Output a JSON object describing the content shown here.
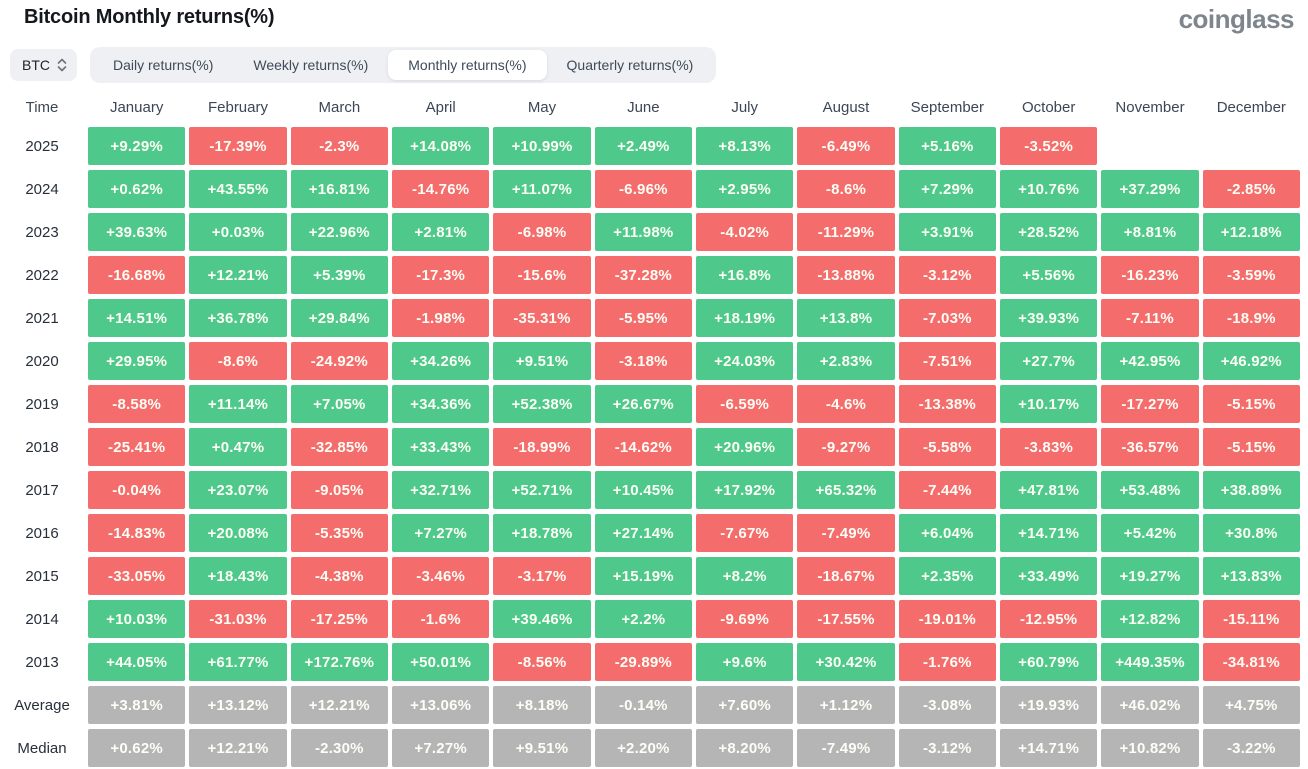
{
  "page": {
    "title": "Bitcoin Monthly returns(%)",
    "logo": "coinglass"
  },
  "controls": {
    "symbol": "BTC",
    "tabs": [
      {
        "label": "Daily returns(%)",
        "selected": false
      },
      {
        "label": "Weekly returns(%)",
        "selected": false
      },
      {
        "label": "Monthly returns(%)",
        "selected": true
      },
      {
        "label": "Quarterly returns(%)",
        "selected": false
      }
    ]
  },
  "colors": {
    "positive": "#4ec98b",
    "negative": "#f56c6c",
    "summary": "#b5b5b5",
    "cell_text": "#fdfef6",
    "chip_bg": "#eef0f3",
    "title_text": "#14171c",
    "logo_text": "#7e858d"
  },
  "table": {
    "time_header": "Time",
    "months": [
      "January",
      "February",
      "March",
      "April",
      "May",
      "June",
      "July",
      "August",
      "September",
      "October",
      "November",
      "December"
    ],
    "rows": [
      {
        "label": "2025",
        "type": "year",
        "values": [
          "+9.29%",
          "-17.39%",
          "-2.3%",
          "+14.08%",
          "+10.99%",
          "+2.49%",
          "+8.13%",
          "-6.49%",
          "+5.16%",
          "-3.52%",
          "",
          ""
        ]
      },
      {
        "label": "2024",
        "type": "year",
        "values": [
          "+0.62%",
          "+43.55%",
          "+16.81%",
          "-14.76%",
          "+11.07%",
          "-6.96%",
          "+2.95%",
          "-8.6%",
          "+7.29%",
          "+10.76%",
          "+37.29%",
          "-2.85%"
        ]
      },
      {
        "label": "2023",
        "type": "year",
        "values": [
          "+39.63%",
          "+0.03%",
          "+22.96%",
          "+2.81%",
          "-6.98%",
          "+11.98%",
          "-4.02%",
          "-11.29%",
          "+3.91%",
          "+28.52%",
          "+8.81%",
          "+12.18%"
        ]
      },
      {
        "label": "2022",
        "type": "year",
        "values": [
          "-16.68%",
          "+12.21%",
          "+5.39%",
          "-17.3%",
          "-15.6%",
          "-37.28%",
          "+16.8%",
          "-13.88%",
          "-3.12%",
          "+5.56%",
          "-16.23%",
          "-3.59%"
        ]
      },
      {
        "label": "2021",
        "type": "year",
        "values": [
          "+14.51%",
          "+36.78%",
          "+29.84%",
          "-1.98%",
          "-35.31%",
          "-5.95%",
          "+18.19%",
          "+13.8%",
          "-7.03%",
          "+39.93%",
          "-7.11%",
          "-18.9%"
        ]
      },
      {
        "label": "2020",
        "type": "year",
        "values": [
          "+29.95%",
          "-8.6%",
          "-24.92%",
          "+34.26%",
          "+9.51%",
          "-3.18%",
          "+24.03%",
          "+2.83%",
          "-7.51%",
          "+27.7%",
          "+42.95%",
          "+46.92%"
        ]
      },
      {
        "label": "2019",
        "type": "year",
        "values": [
          "-8.58%",
          "+11.14%",
          "+7.05%",
          "+34.36%",
          "+52.38%",
          "+26.67%",
          "-6.59%",
          "-4.6%",
          "-13.38%",
          "+10.17%",
          "-17.27%",
          "-5.15%"
        ]
      },
      {
        "label": "2018",
        "type": "year",
        "values": [
          "-25.41%",
          "+0.47%",
          "-32.85%",
          "+33.43%",
          "-18.99%",
          "-14.62%",
          "+20.96%",
          "-9.27%",
          "-5.58%",
          "-3.83%",
          "-36.57%",
          "-5.15%"
        ]
      },
      {
        "label": "2017",
        "type": "year",
        "values": [
          "-0.04%",
          "+23.07%",
          "-9.05%",
          "+32.71%",
          "+52.71%",
          "+10.45%",
          "+17.92%",
          "+65.32%",
          "-7.44%",
          "+47.81%",
          "+53.48%",
          "+38.89%"
        ]
      },
      {
        "label": "2016",
        "type": "year",
        "values": [
          "-14.83%",
          "+20.08%",
          "-5.35%",
          "+7.27%",
          "+18.78%",
          "+27.14%",
          "-7.67%",
          "-7.49%",
          "+6.04%",
          "+14.71%",
          "+5.42%",
          "+30.8%"
        ]
      },
      {
        "label": "2015",
        "type": "year",
        "values": [
          "-33.05%",
          "+18.43%",
          "-4.38%",
          "-3.46%",
          "-3.17%",
          "+15.19%",
          "+8.2%",
          "-18.67%",
          "+2.35%",
          "+33.49%",
          "+19.27%",
          "+13.83%"
        ]
      },
      {
        "label": "2014",
        "type": "year",
        "values": [
          "+10.03%",
          "-31.03%",
          "-17.25%",
          "-1.6%",
          "+39.46%",
          "+2.2%",
          "-9.69%",
          "-17.55%",
          "-19.01%",
          "-12.95%",
          "+12.82%",
          "-15.11%"
        ]
      },
      {
        "label": "2013",
        "type": "year",
        "values": [
          "+44.05%",
          "+61.77%",
          "+172.76%",
          "+50.01%",
          "-8.56%",
          "-29.89%",
          "+9.6%",
          "+30.42%",
          "-1.76%",
          "+60.79%",
          "+449.35%",
          "-34.81%"
        ]
      },
      {
        "label": "Average",
        "type": "summary",
        "values": [
          "+3.81%",
          "+13.12%",
          "+12.21%",
          "+13.06%",
          "+8.18%",
          "-0.14%",
          "+7.60%",
          "+1.12%",
          "-3.08%",
          "+19.93%",
          "+46.02%",
          "+4.75%"
        ]
      },
      {
        "label": "Median",
        "type": "summary",
        "values": [
          "+0.62%",
          "+12.21%",
          "-2.30%",
          "+7.27%",
          "+9.51%",
          "+2.20%",
          "+8.20%",
          "-7.49%",
          "-3.12%",
          "+14.71%",
          "+10.82%",
          "-3.22%"
        ]
      }
    ]
  }
}
